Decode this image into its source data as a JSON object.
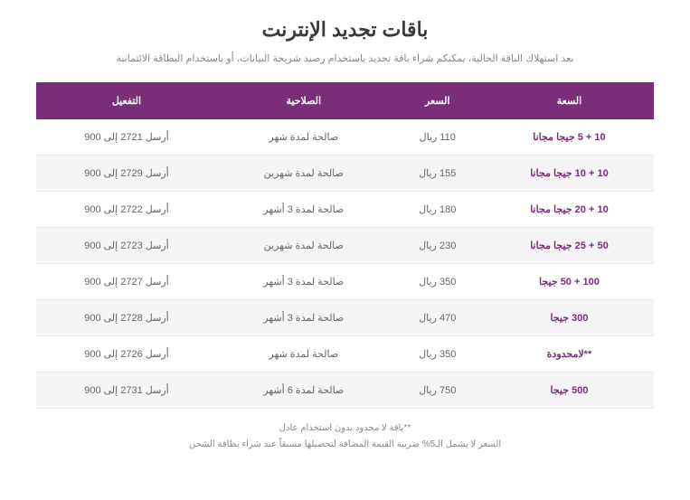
{
  "header": {
    "title": "باقات تجديد الإنترنت",
    "subtitle": "بعد استهلاك الباقة الحالية، يمكنكم شراء باقة تجديد باستخدام رصيد شريحة البيانات، أو باستخدام البطاقة الائتمانية"
  },
  "table": {
    "columns": [
      "السعة",
      "السعر",
      "الصلاحية",
      "التفعيل"
    ],
    "rows": [
      [
        "10 + 5 جيجا مجانا",
        "110 ريال",
        "صالحة لمدة شهر",
        "أرسل 2721 إلى 900"
      ],
      [
        "10 + 10 جيجا مجانا",
        "155 ريال",
        "صالحة لمدة شهرين",
        "أرسل 2729 إلى 900"
      ],
      [
        "10 + 20 جيجا مجانا",
        "180 ريال",
        "صالحة لمدة 3 أشهر",
        "أرسل 2722 إلى 900"
      ],
      [
        "50 + 25 جيجا مجانا",
        "230 ريال",
        "صالحة لمدة شهرين",
        "أرسل 2723 إلى 900"
      ],
      [
        "100 + 50 جيجا",
        "350 ريال",
        "صالحة لمدة 3 أشهر",
        "أرسل 2727 إلى 900"
      ],
      [
        "300 جيجا",
        "470 ريال",
        "صالحة لمدة 3 أشهر",
        "أرسل 2728 إلى 900"
      ],
      [
        "**لامحدودة",
        "350 ريال",
        "صالحة لمدة شهر",
        "أرسل 2726 إلى 900"
      ],
      [
        "500 جيجا",
        "750 ريال",
        "صالحة لمدة 6 أشهر",
        "أرسل 2731 إلى 900"
      ]
    ]
  },
  "footnotes": {
    "line1": "**باقة لا محدود بدون استخدام عادل",
    "line2": "السعر لا يشمل الـ5% ضريبة القيمة المضافة لتحصيلها مسبقاً عند شراء بطاقة الشحن"
  },
  "colors": {
    "header_bg": "#7a2e7a",
    "header_text": "#ffffff",
    "row_alt_bg": "#f5f5f5",
    "capacity_text": "#7a2e7a",
    "body_text": "#666666",
    "subtitle_text": "#888888",
    "title_text": "#3a3a3a",
    "border": "#e8e8e8"
  }
}
